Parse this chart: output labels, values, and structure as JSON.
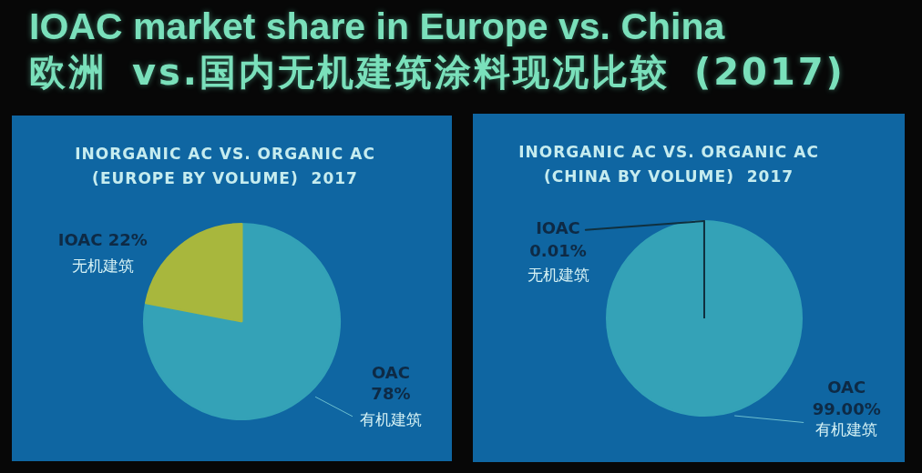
{
  "chart_data": [
    {
      "type": "other",
      "title": "IOAC market share in Europe vs. China",
      "subtitle": "欧洲 vs.国内无机建筑涂料现况比较 (2017)"
    },
    {
      "type": "pie",
      "title": "INORGANIC AC VS. ORGANIC AC",
      "subtitle": "(EUROPE BY VOLUME)  2017",
      "categories": [
        "OAC",
        "IOAC"
      ],
      "values": [
        78,
        22
      ],
      "colors": [
        "#34a2b7",
        "#a8b73d"
      ],
      "value_labels": [
        "78%",
        "22%"
      ],
      "annotations": [
        {
          "text": "有机建筑",
          "x": "OAC"
        },
        {
          "text": "无机建筑",
          "x": "IOAC"
        }
      ]
    },
    {
      "type": "pie",
      "title": "INORGANIC AC VS. ORGANIC AC",
      "subtitle": "(CHINA BY VOLUME)  2017",
      "categories": [
        "OAC",
        "IOAC"
      ],
      "values": [
        99.0,
        0.01
      ],
      "colors": [
        "#34a2b7",
        "#10303f"
      ],
      "value_labels": [
        "99.00%",
        "0.01%"
      ],
      "annotations": [
        {
          "text": "有机建筑",
          "x": "OAC"
        },
        {
          "text": "无机建筑",
          "x": "IOAC"
        }
      ]
    }
  ]
}
